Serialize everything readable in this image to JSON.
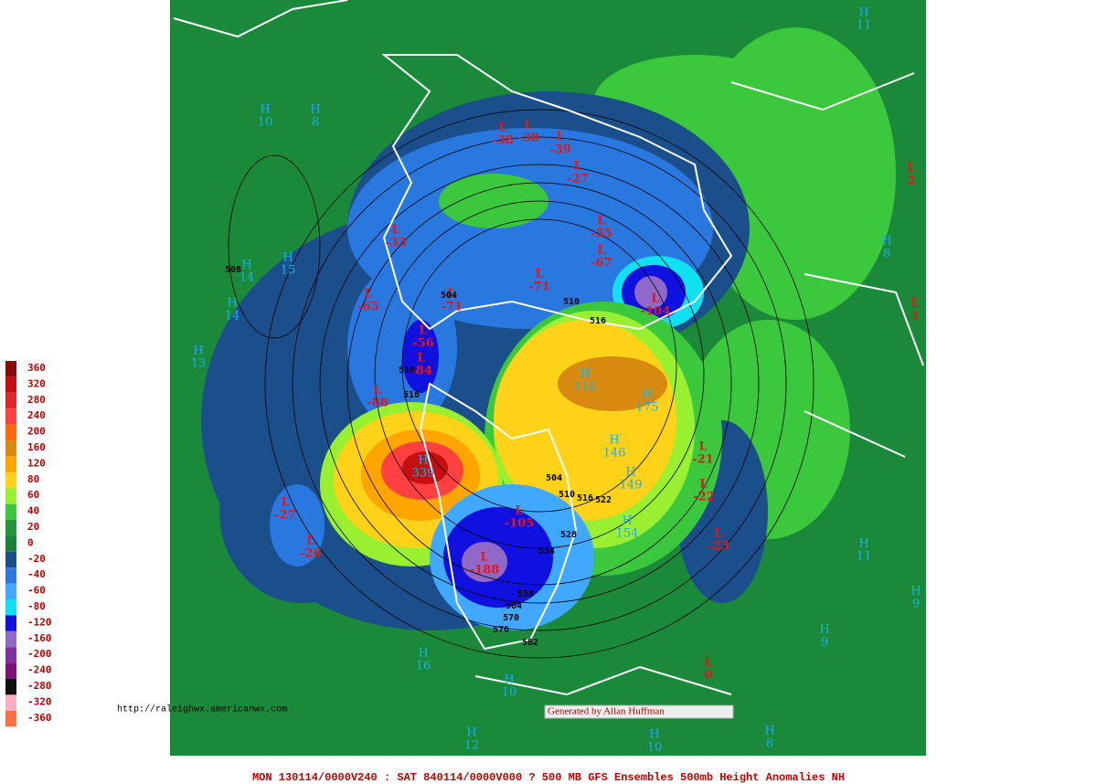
{
  "map": {
    "title": "MON 130114/0000V240 : SAT 840114/0000V000  ? 500 MB GFS Ensembles 500mb Height Anomalies NH",
    "url": "http://raleighwx.americanwx.com",
    "credit": "Generated by Allan Huffman",
    "legend": [
      {
        "value": 360,
        "color": "#8b0a0a"
      },
      {
        "value": 320,
        "color": "#c41010"
      },
      {
        "value": 280,
        "color": "#e02828"
      },
      {
        "value": 240,
        "color": "#ff4040"
      },
      {
        "value": 200,
        "color": "#ff6a10"
      },
      {
        "value": 160,
        "color": "#d88a10"
      },
      {
        "value": 120,
        "color": "#ffa500"
      },
      {
        "value": 80,
        "color": "#ffd21a"
      },
      {
        "value": 60,
        "color": "#98f030"
      },
      {
        "value": 40,
        "color": "#3cc83c"
      },
      {
        "value": 20,
        "color": "#24963c"
      },
      {
        "value": 0,
        "color": "#1a8238"
      },
      {
        "value": -20,
        "color": "#1a4f8c"
      },
      {
        "value": -40,
        "color": "#2878e0"
      },
      {
        "value": -60,
        "color": "#40a8ff"
      },
      {
        "value": -80,
        "color": "#10e0f0"
      },
      {
        "value": -120,
        "color": "#1010e0"
      },
      {
        "value": -160,
        "color": "#9068c8"
      },
      {
        "value": -200,
        "color": "#8030a0"
      },
      {
        "value": -240,
        "color": "#80107a"
      },
      {
        "value": -280,
        "color": "#101010"
      },
      {
        "value": -320,
        "color": "#ffb0c0"
      },
      {
        "value": -360,
        "color": "#ff7040"
      }
    ],
    "centers": [
      {
        "kind": "H",
        "value": 11
      },
      {
        "kind": "H",
        "value": 10
      },
      {
        "kind": "H",
        "value": 8
      },
      {
        "kind": "H",
        "value": 14
      },
      {
        "kind": "H",
        "value": 15
      },
      {
        "kind": "H",
        "value": 14
      },
      {
        "kind": "H",
        "value": 13
      },
      {
        "kind": "H",
        "value": 8
      },
      {
        "kind": "H",
        "value": 116
      },
      {
        "kind": "H",
        "value": 175
      },
      {
        "kind": "H",
        "value": 146
      },
      {
        "kind": "H",
        "value": 149
      },
      {
        "kind": "H",
        "value": 154
      },
      {
        "kind": "H",
        "value": 11
      },
      {
        "kind": "H",
        "value": 9
      },
      {
        "kind": "H",
        "value": 9
      },
      {
        "kind": "H",
        "value": 16
      },
      {
        "kind": "H",
        "value": 10
      },
      {
        "kind": "H",
        "value": 12
      },
      {
        "kind": "H",
        "value": 10
      },
      {
        "kind": "H",
        "value": 8
      },
      {
        "kind": "H",
        "value": 339
      },
      {
        "kind": "L",
        "value": -38
      },
      {
        "kind": "L",
        "value": -38
      },
      {
        "kind": "L",
        "value": -39
      },
      {
        "kind": "L",
        "value": -27
      },
      {
        "kind": "L",
        "value": -33
      },
      {
        "kind": "L",
        "value": -65
      },
      {
        "kind": "L",
        "value": -55
      },
      {
        "kind": "L",
        "value": -67
      },
      {
        "kind": "L",
        "value": -71
      },
      {
        "kind": "L",
        "value": -71
      },
      {
        "kind": "L",
        "value": -56
      },
      {
        "kind": "L",
        "value": -84
      },
      {
        "kind": "L",
        "value": -88
      },
      {
        "kind": "L",
        "value": -104
      },
      {
        "kind": "L",
        "value": -105
      },
      {
        "kind": "L",
        "value": -188
      },
      {
        "kind": "L",
        "value": -27
      },
      {
        "kind": "L",
        "value": -26
      },
      {
        "kind": "L",
        "value": -21
      },
      {
        "kind": "L",
        "value": -22
      },
      {
        "kind": "L",
        "value": -23
      },
      {
        "kind": "L",
        "value": 2
      },
      {
        "kind": "L",
        "value": 1
      },
      {
        "kind": "L",
        "value": 0
      }
    ],
    "contour_labels": [
      508,
      504,
      510,
      516,
      510,
      516,
      504,
      510,
      516,
      522,
      528,
      534,
      558,
      564,
      570,
      576,
      582
    ]
  }
}
